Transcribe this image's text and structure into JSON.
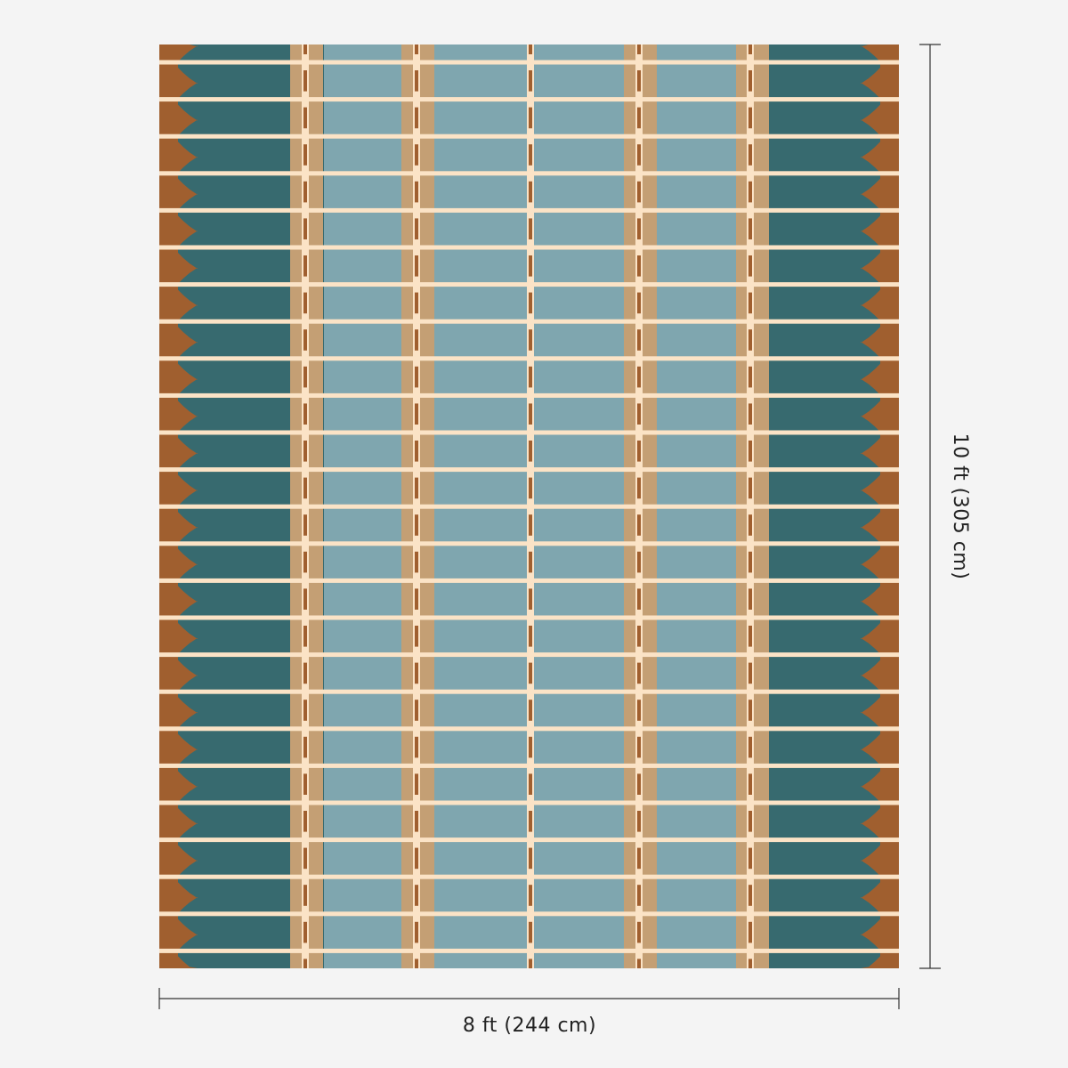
{
  "width_label": "8 ft (244 cm)",
  "height_label": "10 ft (305 cm)"
}
